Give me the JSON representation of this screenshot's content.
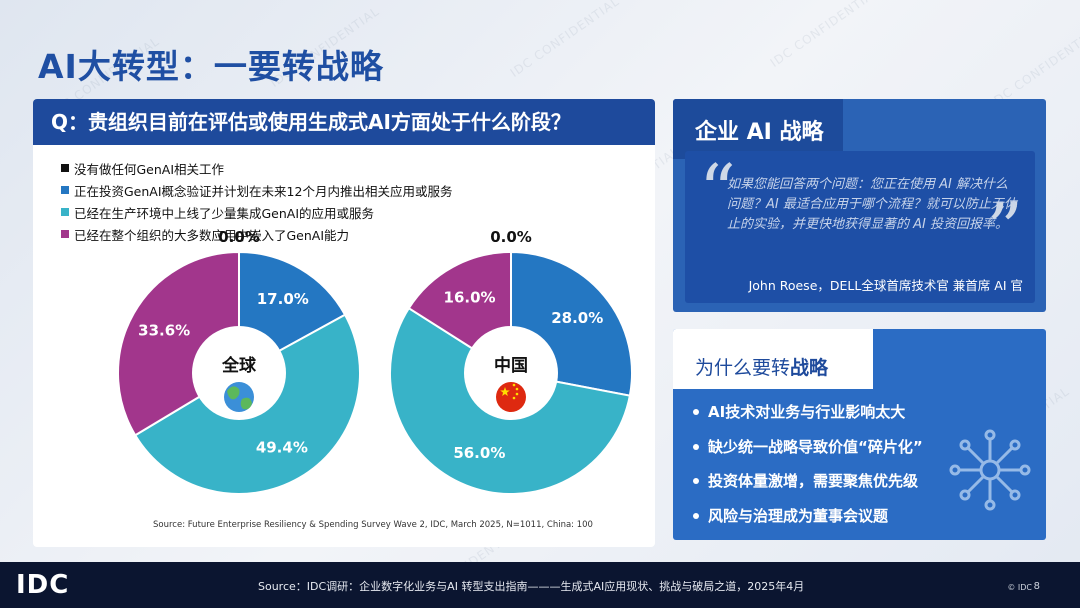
{
  "title": "AI大转型：一要转战略",
  "question": "Q：贵组织目前在评估或使用生成式AI方面处于什么阶段？",
  "watermark": "IDC CONFIDENTIAL",
  "legend": [
    {
      "label": "没有做任何GenAI相关工作",
      "color": "#111111"
    },
    {
      "label": "正在投资GenAI概念验证并计划在未来12个月内推出相关应用或服务",
      "color": "#2477c2"
    },
    {
      "label": "已经在生产环境中上线了少量集成GenAI的应用或服务",
      "color": "#38b3c8"
    },
    {
      "label": "已经在整个组织的大多数应用中嵌入了GenAI能力",
      "color": "#a2368c"
    }
  ],
  "chart_data": [
    {
      "type": "pie",
      "center_label": "全球",
      "categories": [
        "没有做任何GenAI相关工作",
        "正在投资GenAI概念验证并计划在未来12个月内推出相关应用或服务",
        "已经在生产环境中上线了少量集成GenAI的应用或服务",
        "已经在整个组织的大多数应用中嵌入了GenAI能力"
      ],
      "values": [
        0.0,
        17.0,
        49.4,
        33.6
      ],
      "value_labels": [
        "0.0%",
        "17.0%",
        "49.4%",
        "33.6%"
      ],
      "colors": [
        "#111111",
        "#2477c2",
        "#38b3c8",
        "#a2368c"
      ]
    },
    {
      "type": "pie",
      "center_label": "中国",
      "categories": [
        "没有做任何GenAI相关工作",
        "正在投资GenAI概念验证并计划在未来12个月内推出相关应用或服务",
        "已经在生产环境中上线了少量集成GenAI的应用或服务",
        "已经在整个组织的大多数应用中嵌入了GenAI能力"
      ],
      "values": [
        0.0,
        28.0,
        56.0,
        16.0
      ],
      "value_labels": [
        "0.0%",
        "28.0%",
        "56.0%",
        "16.0%"
      ],
      "colors": [
        "#111111",
        "#2477c2",
        "#38b3c8",
        "#a2368c"
      ]
    }
  ],
  "chart_source": "Source: Future Enterprise Resiliency & Spending Survey Wave 2, IDC, March 2025, N=1011, China: 100",
  "strategy": {
    "title": "企业 AI 战略",
    "quote": "如果您能回答两个问题：您正在使用 AI 解决什么问题？AI 最适合应用于哪个流程？就可以防止无休止的实验，并更快地获得显著的 AI 投资回报率。",
    "author": "John Roese，DELL全球首席技术官 兼首席 AI 官"
  },
  "why": {
    "title_prefix": "为什么要转",
    "title_bold": "战略",
    "items": [
      "AI技术对业务与行业影响太大",
      "缺少统一战略导致价值“碎片化”",
      "投资体量激增，需要聚焦优先级",
      "风险与治理成为董事会议题"
    ]
  },
  "footer": {
    "logo": "IDC",
    "source": "Source：IDC调研：企业数字化业务与AI 转型支出指南———生成式AI应用现状、挑战与破局之道，2025年4月",
    "copyright": "© IDC",
    "page": "8"
  }
}
